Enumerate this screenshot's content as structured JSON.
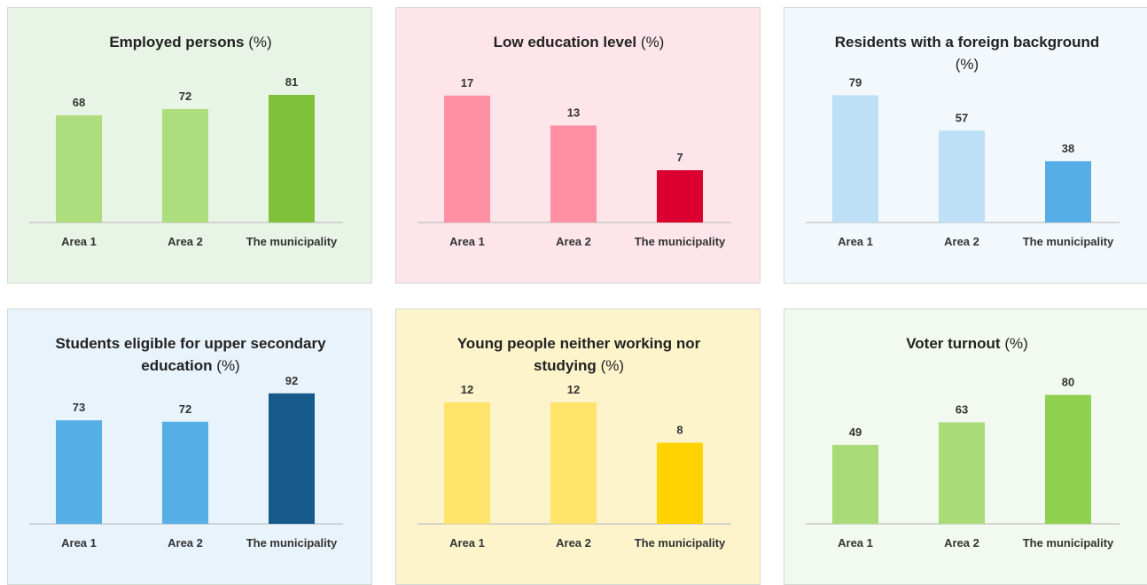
{
  "chart_data": [
    {
      "type": "bar",
      "title": "Employed persons",
      "title_suffix": "(%)",
      "categories": [
        "Area 1",
        "Area 2",
        "The municipality"
      ],
      "values": [
        68,
        72,
        81
      ],
      "colors": [
        "#aedd7d",
        "#aedd7d",
        "#7fc23a"
      ],
      "background": "#e8f5e6",
      "ylim": [
        0,
        90
      ]
    },
    {
      "type": "bar",
      "title": "Low education level",
      "title_suffix": "(%)",
      "categories": [
        "Area 1",
        "Area 2",
        "The municipality"
      ],
      "values": [
        17,
        13,
        7
      ],
      "colors": [
        "#ff8fa2",
        "#ff8fa2",
        "#dc0030"
      ],
      "background": "#fde5e9",
      "ylim": [
        0,
        19
      ]
    },
    {
      "type": "bar",
      "title": "Residents with a foreign background",
      "title_suffix": "(%)",
      "categories": [
        "Area 1",
        "Area 2",
        "The municipality"
      ],
      "values": [
        79,
        57,
        38
      ],
      "colors": [
        "#bde0f6",
        "#bde0f6",
        "#56aee6"
      ],
      "background": "#f3f8fc",
      "ylim": [
        0,
        88
      ]
    },
    {
      "type": "bar",
      "title": "Students eligible for upper secondary education",
      "title_suffix": "(%)",
      "categories": [
        "Area 1",
        "Area 2",
        "The municipality"
      ],
      "values": [
        73,
        72,
        92
      ],
      "colors": [
        "#56aee6",
        "#56aee6",
        "#155a8a"
      ],
      "background": "#e9f3fb",
      "ylim": [
        0,
        100
      ]
    },
    {
      "type": "bar",
      "title": "Young people neither working nor studying",
      "title_suffix": "(%)",
      "categories": [
        "Area 1",
        "Area 2",
        "The municipality"
      ],
      "values": [
        12,
        12,
        8
      ],
      "colors": [
        "#ffe36b",
        "#ffe36b",
        "#ffd200"
      ],
      "background": "#fdf4cb",
      "ylim": [
        0,
        14
      ]
    },
    {
      "type": "bar",
      "title": "Voter turnout",
      "title_suffix": "(%)",
      "categories": [
        "Area 1",
        "Area 2",
        "The municipality"
      ],
      "values": [
        49,
        63,
        80
      ],
      "colors": [
        "#a9db78",
        "#a9db78",
        "#8fd14f"
      ],
      "background": "#f2faef",
      "ylim": [
        0,
        88
      ]
    }
  ]
}
